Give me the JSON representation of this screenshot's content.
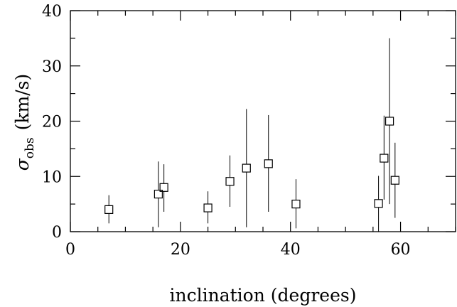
{
  "chart_data": {
    "type": "scatter",
    "xlabel": "inclination (degrees)",
    "ylabel": {
      "symbol": "σ",
      "subscript": "obs",
      "unit": "(km/s)"
    },
    "xlim": [
      0,
      70
    ],
    "ylim": [
      0,
      40
    ],
    "xticks": [
      0,
      20,
      40,
      60
    ],
    "yticks": [
      0,
      10,
      20,
      30,
      40
    ],
    "x_minor_step": 5,
    "y_minor_step": 5,
    "marker": "open-square",
    "error_bars": "vertical",
    "grid": false,
    "points": [
      {
        "x": 7,
        "y": 4.0,
        "y_low": 1.5,
        "y_high": 6.6
      },
      {
        "x": 16,
        "y": 6.8,
        "y_low": 0.8,
        "y_high": 12.7
      },
      {
        "x": 17,
        "y": 8.0,
        "y_low": 3.6,
        "y_high": 12.2
      },
      {
        "x": 25,
        "y": 4.3,
        "y_low": 1.5,
        "y_high": 7.3
      },
      {
        "x": 29,
        "y": 9.1,
        "y_low": 4.5,
        "y_high": 13.8
      },
      {
        "x": 32,
        "y": 11.5,
        "y_low": 0.8,
        "y_high": 22.2
      },
      {
        "x": 36,
        "y": 12.3,
        "y_low": 3.6,
        "y_high": 21.1
      },
      {
        "x": 41,
        "y": 5.0,
        "y_low": 0.6,
        "y_high": 9.5
      },
      {
        "x": 56,
        "y": 5.1,
        "y_low": 0.0,
        "y_high": 10.1
      },
      {
        "x": 57,
        "y": 13.3,
        "y_low": 5.8,
        "y_high": 21.0
      },
      {
        "x": 58,
        "y": 20.0,
        "y_low": 5.0,
        "y_high": 35.0
      },
      {
        "x": 59,
        "y": 9.3,
        "y_low": 2.5,
        "y_high": 16.1
      }
    ]
  }
}
